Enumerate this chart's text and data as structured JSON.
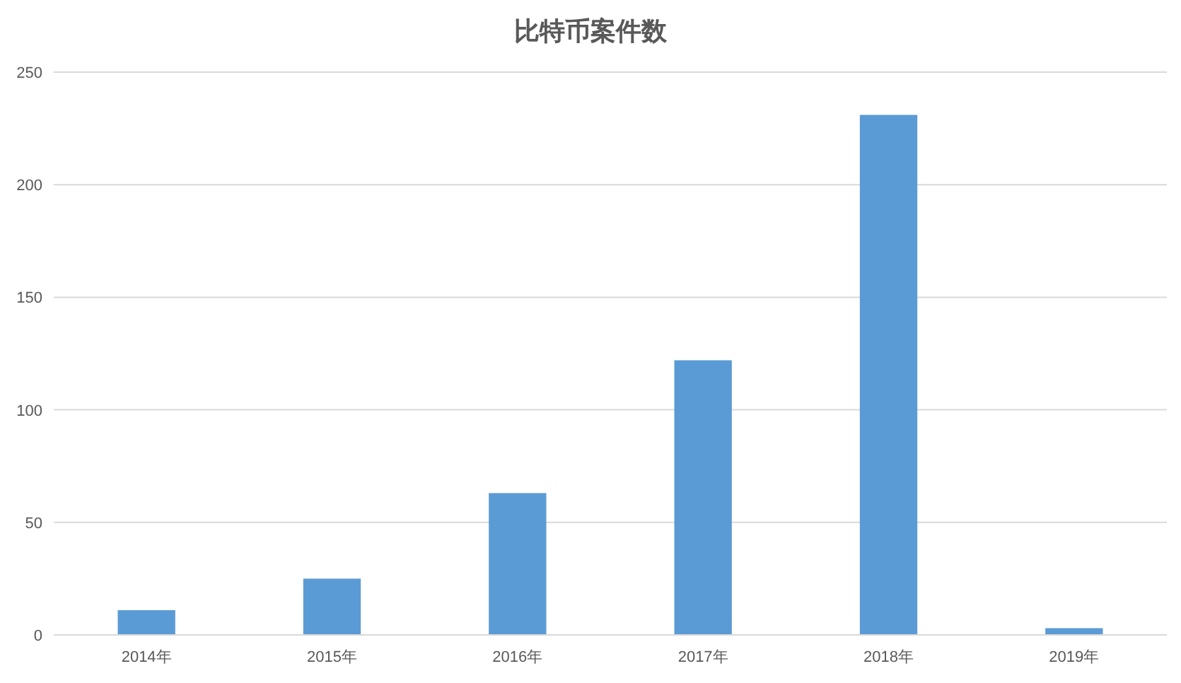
{
  "chart_data": {
    "type": "bar",
    "title": "比特币案件数",
    "categories": [
      "2014年",
      "2015年",
      "2016年",
      "2017年",
      "2018年",
      "2019年"
    ],
    "values": [
      11,
      25,
      63,
      122,
      231,
      3
    ],
    "color": "#5b9bd5",
    "ylim": [
      0,
      250
    ],
    "yticks": [
      0,
      50,
      100,
      150,
      200,
      250
    ],
    "grid": "y"
  }
}
